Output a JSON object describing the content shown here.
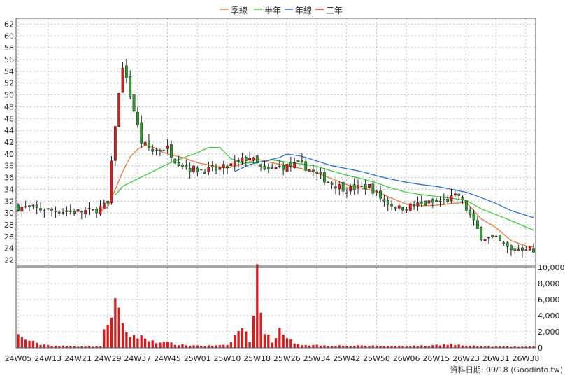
{
  "chart_data": {
    "type": "candlestick-with-volume",
    "title": "",
    "legend": [
      {
        "name": "季線",
        "color": "#e8783a"
      },
      {
        "name": "半年",
        "color": "#3ccc3c"
      },
      {
        "name": "年線",
        "color": "#2f6fd6"
      },
      {
        "name": "三年",
        "color": "#e02828"
      }
    ],
    "legend_placement": "top-center",
    "price_axis": {
      "ylim": [
        21,
        63
      ],
      "ticks": [
        22,
        24,
        26,
        28,
        30,
        32,
        34,
        36,
        38,
        40,
        42,
        44,
        46,
        48,
        50,
        52,
        54,
        56,
        58,
        60,
        62
      ]
    },
    "volume_axis": {
      "ylim": [
        0,
        10000
      ],
      "ticks": [
        0,
        2000,
        4000,
        6000,
        8000,
        10000
      ],
      "tick_labels": [
        "0",
        "2,000",
        "4,000",
        "6,000",
        "8,000",
        "10,000"
      ]
    },
    "x_tick_labels": [
      "24W05",
      "24W13",
      "24W21",
      "24W29",
      "24W37",
      "24W45",
      "25W01",
      "25W10",
      "25W18",
      "25W26",
      "25W34",
      "25W42",
      "25W50",
      "26W06",
      "26W15",
      "26W23",
      "26W31",
      "26W38"
    ],
    "grid": true,
    "source": "資料日期: 09/18 (Goodinfo.tw)",
    "candle_colors": {
      "up": "#dd1a1a",
      "down": "#2ca02c"
    },
    "key_points": {
      "price": [
        [
          0,
          31
        ],
        [
          8,
          30.5
        ],
        [
          14,
          30.2
        ],
        [
          20,
          30.3
        ],
        [
          24,
          31.5
        ],
        [
          26,
          45
        ],
        [
          28,
          55
        ],
        [
          30,
          50
        ],
        [
          33,
          42
        ],
        [
          36,
          40.5
        ],
        [
          40,
          41
        ],
        [
          42,
          39
        ],
        [
          46,
          37.5
        ],
        [
          52,
          37.2
        ],
        [
          56,
          37.8
        ],
        [
          62,
          39.5
        ],
        [
          66,
          37
        ],
        [
          70,
          37.8
        ],
        [
          76,
          38.2
        ],
        [
          80,
          36.5
        ],
        [
          84,
          35
        ],
        [
          88,
          34
        ],
        [
          94,
          34.5
        ],
        [
          98,
          32
        ],
        [
          102,
          30.8
        ],
        [
          108,
          31.5
        ],
        [
          114,
          32
        ],
        [
          118,
          33
        ],
        [
          124,
          26
        ],
        [
          128,
          25.5
        ],
        [
          132,
          23.6
        ],
        [
          136,
          24.2
        ],
        [
          138,
          23.4
        ]
      ],
      "volume": [
        [
          0,
          1500
        ],
        [
          5,
          500
        ],
        [
          10,
          250
        ],
        [
          14,
          200
        ],
        [
          22,
          200
        ],
        [
          24,
          3500
        ],
        [
          26,
          5500
        ],
        [
          28,
          2500
        ],
        [
          30,
          1600
        ],
        [
          32,
          1400
        ],
        [
          36,
          900
        ],
        [
          40,
          600
        ],
        [
          44,
          350
        ],
        [
          50,
          250
        ],
        [
          56,
          300
        ],
        [
          60,
          2600
        ],
        [
          62,
          800
        ],
        [
          64,
          10400
        ],
        [
          66,
          1900
        ],
        [
          68,
          900
        ],
        [
          70,
          2000
        ],
        [
          72,
          1000
        ],
        [
          76,
          400
        ],
        [
          82,
          300
        ],
        [
          90,
          250
        ],
        [
          100,
          250
        ],
        [
          110,
          250
        ],
        [
          115,
          500
        ],
        [
          120,
          250
        ],
        [
          130,
          150
        ],
        [
          138,
          150
        ]
      ]
    },
    "ma_series": {
      "季線": [
        [
          22,
          30.3
        ],
        [
          24,
          31
        ],
        [
          26,
          34
        ],
        [
          28,
          37
        ],
        [
          30,
          39.5
        ],
        [
          32,
          40.8
        ],
        [
          34,
          41.5
        ],
        [
          36,
          41.2
        ],
        [
          38,
          40.5
        ],
        [
          40,
          40
        ],
        [
          44,
          39.4
        ],
        [
          48,
          38.5
        ],
        [
          52,
          38
        ],
        [
          56,
          37.6
        ],
        [
          60,
          38.3
        ],
        [
          64,
          39.1
        ],
        [
          68,
          38.5
        ],
        [
          72,
          38
        ],
        [
          76,
          37.5
        ],
        [
          80,
          36.8
        ],
        [
          84,
          35.8
        ],
        [
          88,
          34.8
        ],
        [
          92,
          34.2
        ],
        [
          96,
          33.6
        ],
        [
          100,
          32.5
        ],
        [
          104,
          31.5
        ],
        [
          108,
          31.2
        ],
        [
          112,
          31.3
        ],
        [
          116,
          31.6
        ],
        [
          120,
          31.8
        ],
        [
          124,
          29
        ],
        [
          128,
          27.5
        ],
        [
          132,
          25.3
        ],
        [
          136,
          24.4
        ],
        [
          138,
          24.2
        ]
      ],
      "半年": [
        [
          26,
          33
        ],
        [
          28,
          34.5
        ],
        [
          32,
          35.8
        ],
        [
          36,
          37
        ],
        [
          40,
          38.3
        ],
        [
          44,
          39.3
        ],
        [
          48,
          40.2
        ],
        [
          51,
          41.1
        ],
        [
          54,
          41.1
        ],
        [
          57,
          39.2
        ],
        [
          60,
          38.4
        ],
        [
          64,
          38.6
        ],
        [
          68,
          39
        ],
        [
          72,
          38.6
        ],
        [
          76,
          38.3
        ],
        [
          80,
          37.9
        ],
        [
          84,
          37.1
        ],
        [
          88,
          36.4
        ],
        [
          92,
          35.8
        ],
        [
          96,
          35.1
        ],
        [
          100,
          34.2
        ],
        [
          104,
          33.5
        ],
        [
          108,
          33.1
        ],
        [
          112,
          32.8
        ],
        [
          116,
          32.5
        ],
        [
          120,
          32.1
        ],
        [
          124,
          30.7
        ],
        [
          128,
          29.7
        ],
        [
          132,
          28.7
        ],
        [
          136,
          27.6
        ],
        [
          138,
          27.1
        ]
      ],
      "年線": [
        [
          58,
          37
        ],
        [
          62,
          38.2
        ],
        [
          66,
          38.8
        ],
        [
          70,
          39.4
        ],
        [
          72,
          40
        ],
        [
          76,
          39.6
        ],
        [
          80,
          38.8
        ],
        [
          84,
          38
        ],
        [
          88,
          37.5
        ],
        [
          92,
          37
        ],
        [
          96,
          36.3
        ],
        [
          100,
          35.7
        ],
        [
          104,
          35.2
        ],
        [
          108,
          34.8
        ],
        [
          112,
          34.5
        ],
        [
          116,
          34
        ],
        [
          120,
          33.5
        ],
        [
          124,
          32.6
        ],
        [
          128,
          31.6
        ],
        [
          132,
          30.4
        ],
        [
          136,
          29.6
        ],
        [
          138,
          29.2
        ]
      ]
    },
    "n_weeks": 139
  }
}
